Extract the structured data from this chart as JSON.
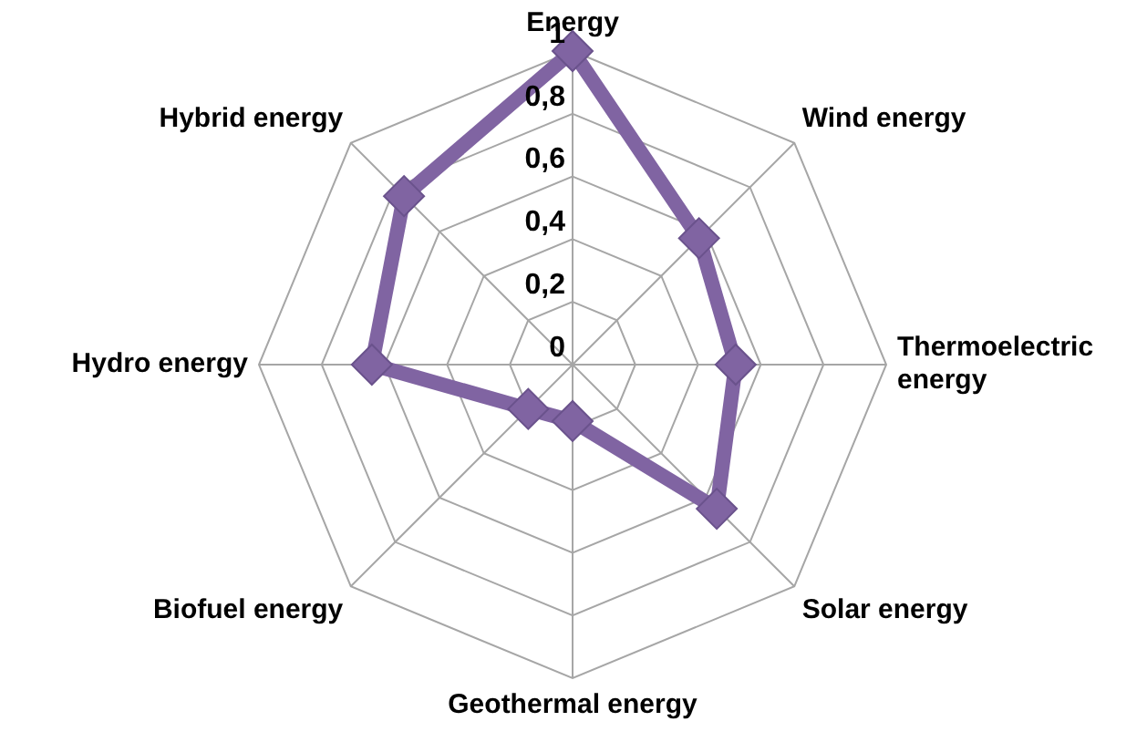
{
  "chart_data": {
    "type": "radar",
    "categories": [
      "Energy",
      "Wind energy",
      "Thermoelectric\nenergy",
      "Solar energy",
      "Geothermal energy",
      "Biofuel energy",
      "Hydro energy",
      "Hybrid energy"
    ],
    "series": [
      {
        "color": "#8064a2",
        "values": [
          1,
          0.57,
          0.52,
          0.65,
          0.18,
          0.2,
          0.64,
          0.76
        ]
      }
    ],
    "ylim": [
      0,
      1
    ],
    "yticks": [
      0,
      {
        "value": 0.2,
        "label": "0,2"
      },
      {
        "value": 0.4,
        "label": "0,4"
      },
      {
        "value": 0.6,
        "label": "0,6"
      },
      {
        "value": 0.8,
        "label": "0,8"
      },
      1
    ],
    "grid": true,
    "legend": false,
    "marker": "diamond",
    "line_style": "solid"
  }
}
